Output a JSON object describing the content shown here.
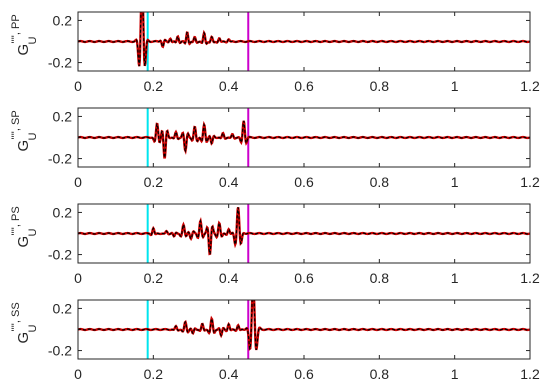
{
  "chart_data": [
    {
      "type": "line",
      "ylabel": {
        "main": "G",
        "sup": "'''', PP",
        "sub": "U"
      },
      "xlim": [
        0,
        1.2
      ],
      "ylim": [
        -0.28,
        0.28
      ],
      "xticks": [
        0,
        0.2,
        0.4,
        0.6,
        0.8,
        1,
        1.2
      ],
      "xtick_labels": [
        "0",
        "0.2",
        "0.4",
        "0.6",
        "0.8",
        "1",
        "1.2"
      ],
      "yticks": [
        0.2,
        -0.2
      ],
      "ytick_labels": [
        "0.2",
        "-0.2"
      ],
      "vlines": [
        {
          "x": 0.185,
          "color": "#00e5ee"
        },
        {
          "x": 0.452,
          "color": "#cc00cc"
        }
      ],
      "wavelets": [
        {
          "t0": 0.17,
          "amp": 0.6,
          "f": 55,
          "s": 0.006
        },
        {
          "t0": 0.225,
          "amp": -0.05,
          "f": 60,
          "s": 0.004
        },
        {
          "t0": 0.245,
          "amp": 0.03,
          "f": 60,
          "s": 0.004
        },
        {
          "t0": 0.265,
          "amp": 0.05,
          "f": 60,
          "s": 0.004
        },
        {
          "t0": 0.29,
          "amp": 0.09,
          "f": 60,
          "s": 0.004
        },
        {
          "t0": 0.31,
          "amp": 0.04,
          "f": 60,
          "s": 0.004
        },
        {
          "t0": 0.335,
          "amp": 0.08,
          "f": 60,
          "s": 0.004
        },
        {
          "t0": 0.355,
          "amp": 0.04,
          "f": 60,
          "s": 0.004
        },
        {
          "t0": 0.375,
          "amp": 0.03,
          "f": 60,
          "s": 0.004
        },
        {
          "t0": 0.4,
          "amp": 0.02,
          "f": 60,
          "s": 0.004
        }
      ],
      "series": [
        {
          "color": "#cc0000",
          "style": "solid"
        },
        {
          "color": "#000000",
          "style": "dashed"
        }
      ]
    },
    {
      "type": "line",
      "ylabel": {
        "main": "G",
        "sup": "'''', SP",
        "sub": "U"
      },
      "xlim": [
        0,
        1.2
      ],
      "ylim": [
        -0.28,
        0.28
      ],
      "xticks": [
        0,
        0.2,
        0.4,
        0.6,
        0.8,
        1,
        1.2
      ],
      "xtick_labels": [
        "0",
        "0.2",
        "0.4",
        "0.6",
        "0.8",
        "1",
        "1.2"
      ],
      "yticks": [
        0.2,
        -0.2
      ],
      "ytick_labels": [
        "0.2",
        "-0.2"
      ],
      "vlines": [
        {
          "x": 0.185,
          "color": "#00e5ee"
        },
        {
          "x": 0.452,
          "color": "#cc00cc"
        }
      ],
      "wavelets": [
        {
          "t0": 0.21,
          "amp": 0.13,
          "f": 58,
          "s": 0.005
        },
        {
          "t0": 0.23,
          "amp": -0.2,
          "f": 58,
          "s": 0.005
        },
        {
          "t0": 0.26,
          "amp": 0.05,
          "f": 60,
          "s": 0.004
        },
        {
          "t0": 0.285,
          "amp": -0.13,
          "f": 58,
          "s": 0.005
        },
        {
          "t0": 0.31,
          "amp": 0.1,
          "f": 58,
          "s": 0.005
        },
        {
          "t0": 0.335,
          "amp": 0.12,
          "f": 58,
          "s": 0.005
        },
        {
          "t0": 0.355,
          "amp": -0.06,
          "f": 60,
          "s": 0.004
        },
        {
          "t0": 0.385,
          "amp": 0.04,
          "f": 60,
          "s": 0.004
        },
        {
          "t0": 0.41,
          "amp": 0.03,
          "f": 60,
          "s": 0.004
        },
        {
          "t0": 0.44,
          "amp": 0.16,
          "f": 58,
          "s": 0.005
        }
      ],
      "series": [
        {
          "color": "#cc0000",
          "style": "solid"
        },
        {
          "color": "#000000",
          "style": "dashed"
        }
      ]
    },
    {
      "type": "line",
      "ylabel": {
        "main": "G",
        "sup": "'''', PS",
        "sub": "U"
      },
      "xlim": [
        0,
        1.2
      ],
      "ylim": [
        -0.28,
        0.28
      ],
      "xticks": [
        0,
        0.2,
        0.4,
        0.6,
        0.8,
        1,
        1.2
      ],
      "xtick_labels": [
        "0",
        "0.2",
        "0.4",
        "0.6",
        "0.8",
        "1",
        "1.2"
      ],
      "yticks": [
        0.2,
        -0.2
      ],
      "ytick_labels": [
        "0.2",
        "-0.2"
      ],
      "vlines": [
        {
          "x": 0.185,
          "color": "#00e5ee"
        },
        {
          "x": 0.452,
          "color": "#cc00cc"
        }
      ],
      "wavelets": [
        {
          "t0": 0.2,
          "amp": 0.05,
          "f": 60,
          "s": 0.004
        },
        {
          "t0": 0.235,
          "amp": 0.02,
          "f": 60,
          "s": 0.004
        },
        {
          "t0": 0.255,
          "amp": -0.03,
          "f": 60,
          "s": 0.004
        },
        {
          "t0": 0.28,
          "amp": 0.08,
          "f": 58,
          "s": 0.005
        },
        {
          "t0": 0.3,
          "amp": -0.05,
          "f": 58,
          "s": 0.005
        },
        {
          "t0": 0.325,
          "amp": 0.12,
          "f": 58,
          "s": 0.005
        },
        {
          "t0": 0.35,
          "amp": -0.2,
          "f": 58,
          "s": 0.005
        },
        {
          "t0": 0.375,
          "amp": 0.1,
          "f": 58,
          "s": 0.005
        },
        {
          "t0": 0.4,
          "amp": 0.04,
          "f": 60,
          "s": 0.004
        },
        {
          "t0": 0.425,
          "amp": 0.25,
          "f": 56,
          "s": 0.006
        }
      ],
      "series": [
        {
          "color": "#cc0000",
          "style": "solid"
        },
        {
          "color": "#000000",
          "style": "dashed"
        }
      ]
    },
    {
      "type": "line",
      "ylabel": {
        "main": "G",
        "sup": "'''', SS",
        "sub": "U"
      },
      "xlim": [
        0,
        1.2
      ],
      "ylim": [
        -0.28,
        0.28
      ],
      "xticks": [
        0,
        0.2,
        0.4,
        0.6,
        0.8,
        1,
        1.2
      ],
      "xtick_labels": [
        "0",
        "0.2",
        "0.4",
        "0.6",
        "0.8",
        "1",
        "1.2"
      ],
      "yticks": [
        0.2,
        -0.2
      ],
      "ytick_labels": [
        "0.2",
        "-0.2"
      ],
      "vlines": [
        {
          "x": 0.185,
          "color": "#00e5ee"
        },
        {
          "x": 0.452,
          "color": "#cc00cc"
        }
      ],
      "wavelets": [
        {
          "t0": 0.26,
          "amp": 0.03,
          "f": 60,
          "s": 0.004
        },
        {
          "t0": 0.285,
          "amp": 0.07,
          "f": 58,
          "s": 0.005
        },
        {
          "t0": 0.305,
          "amp": -0.04,
          "f": 60,
          "s": 0.004
        },
        {
          "t0": 0.33,
          "amp": 0.05,
          "f": 60,
          "s": 0.004
        },
        {
          "t0": 0.355,
          "amp": 0.1,
          "f": 58,
          "s": 0.005
        },
        {
          "t0": 0.38,
          "amp": -0.06,
          "f": 60,
          "s": 0.004
        },
        {
          "t0": 0.4,
          "amp": 0.05,
          "f": 60,
          "s": 0.004
        },
        {
          "t0": 0.425,
          "amp": 0.04,
          "f": 60,
          "s": 0.004
        },
        {
          "t0": 0.465,
          "amp": 0.45,
          "f": 50,
          "s": 0.007
        }
      ],
      "series": [
        {
          "color": "#cc0000",
          "style": "solid"
        },
        {
          "color": "#000000",
          "style": "dashed"
        }
      ]
    }
  ]
}
